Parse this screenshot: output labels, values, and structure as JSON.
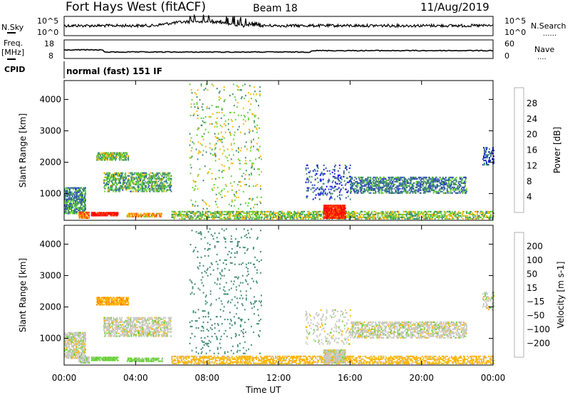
{
  "header": {
    "title": "Fort Hays West (fitACF)",
    "beam": "Beam 18",
    "date": "11/Aug/2019"
  },
  "noise_panel": {
    "left_label": "N.Sky",
    "right_label": "N.Search",
    "ticks_left": [
      "10^5",
      "10^0"
    ],
    "ticks_right": [
      "10^5",
      "10^0"
    ],
    "right_marker": "......"
  },
  "freq_panel": {
    "left_label_1": "Freq.",
    "left_label_2": "[MHz]",
    "right_label": "Nave",
    "ticks_left": [
      "18",
      "8"
    ],
    "ticks_right": [
      "60",
      "0"
    ],
    "right_marker": "...."
  },
  "cpid": {
    "label": "CPID",
    "value": "normal (fast) 151 IF"
  },
  "chart_data": [
    {
      "type": "heatmap",
      "title": "Power",
      "xlabel": "Time UT",
      "ylabel": "Slant Range [km]",
      "xlim": [
        0,
        24
      ],
      "ylim": [
        150,
        4600
      ],
      "xticks": [
        "00:00",
        "04:00",
        "08:00",
        "12:00",
        "16:00",
        "20:00",
        "00:00"
      ],
      "yticks": [
        1000,
        2000,
        3000,
        4000
      ],
      "colorbar": {
        "label": "Power [dB]",
        "ticks": [
          "28",
          "24",
          "20",
          "16",
          "12",
          "8",
          "4"
        ],
        "colors": [
          "#ff0000",
          "#ff3a00",
          "#ff7800",
          "#ffb400",
          "#64d232",
          "#3c8a6e",
          "#2846b4",
          "#0000ff"
        ]
      },
      "echo_regions": [
        {
          "t": [
            0,
            1.2
          ],
          "r": [
            350,
            1200
          ],
          "value": 10,
          "density": 0.6
        },
        {
          "t": [
            0.8,
            1.4
          ],
          "r": [
            200,
            420
          ],
          "value": 22,
          "density": 0.7
        },
        {
          "t": [
            1.5,
            3.0
          ],
          "r": [
            280,
            400
          ],
          "value": 29,
          "density": 0.8
        },
        {
          "t": [
            1.8,
            3.6
          ],
          "r": [
            2050,
            2300
          ],
          "value": 13,
          "density": 0.7
        },
        {
          "t": [
            2.2,
            6.0
          ],
          "r": [
            1050,
            1650
          ],
          "value": 12,
          "density": 0.45
        },
        {
          "t": [
            3.5,
            5.5
          ],
          "r": [
            250,
            350
          ],
          "value": 20,
          "density": 0.6
        },
        {
          "t": [
            7.0,
            11.0
          ],
          "r": [
            500,
            4500
          ],
          "value": 14,
          "density": 0.04
        },
        {
          "t": [
            6.0,
            24.0
          ],
          "r": [
            180,
            420
          ],
          "value": 14,
          "density": 0.45
        },
        {
          "t": [
            13.5,
            16.0
          ],
          "r": [
            800,
            1900
          ],
          "value": 6,
          "density": 0.12
        },
        {
          "t": [
            14.5,
            15.7
          ],
          "r": [
            200,
            650
          ],
          "value": 28,
          "density": 0.85
        },
        {
          "t": [
            16.0,
            22.5
          ],
          "r": [
            1000,
            1500
          ],
          "value": 9,
          "density": 0.45
        },
        {
          "t": [
            23.4,
            24.0
          ],
          "r": [
            1900,
            2450
          ],
          "value": 6,
          "density": 0.3
        }
      ]
    },
    {
      "type": "heatmap",
      "title": "Velocity",
      "xlabel": "Time UT",
      "ylabel": "Slant Range [km]",
      "xlim": [
        0,
        24
      ],
      "ylim": [
        150,
        4600
      ],
      "xticks": [
        "00:00",
        "04:00",
        "08:00",
        "12:00",
        "16:00",
        "20:00",
        "00:00"
      ],
      "yticks": [
        1000,
        2000,
        3000,
        4000
      ],
      "colorbar": {
        "label": "Velocity [m s-1]",
        "ticks": [
          "200",
          "100",
          "50",
          "15",
          "−15",
          "−50",
          "−100",
          "−200"
        ],
        "colors": [
          "#0000ff",
          "#2846b4",
          "#3c8a6e",
          "#64d232",
          "#c8c8c0",
          "#ffb400",
          "#ff7800",
          "#ff3a00",
          "#ff0000"
        ]
      },
      "echo_regions": [
        {
          "t": [
            0,
            1.2
          ],
          "r": [
            350,
            1200
          ],
          "value": 0,
          "density": 0.6
        },
        {
          "t": [
            0.8,
            1.4
          ],
          "r": [
            200,
            420
          ],
          "value": 5,
          "density": 0.7
        },
        {
          "t": [
            1.5,
            3.0
          ],
          "r": [
            280,
            400
          ],
          "value": 30,
          "density": 0.8
        },
        {
          "t": [
            1.8,
            3.6
          ],
          "r": [
            2050,
            2300
          ],
          "value": -40,
          "density": 0.7
        },
        {
          "t": [
            2.2,
            6.0
          ],
          "r": [
            1050,
            1650
          ],
          "value": 0,
          "density": 0.45
        },
        {
          "t": [
            3.5,
            5.5
          ],
          "r": [
            250,
            350
          ],
          "value": 30,
          "density": 0.6
        },
        {
          "t": [
            7.0,
            11.0
          ],
          "r": [
            500,
            4500
          ],
          "value": 80,
          "density": 0.04
        },
        {
          "t": [
            6.0,
            24.0
          ],
          "r": [
            180,
            420
          ],
          "value": -30,
          "density": 0.45
        },
        {
          "t": [
            13.5,
            16.0
          ],
          "r": [
            800,
            1900
          ],
          "value": 0,
          "density": 0.12
        },
        {
          "t": [
            14.5,
            15.7
          ],
          "r": [
            200,
            650
          ],
          "value": 0,
          "density": 0.85
        },
        {
          "t": [
            16.0,
            22.5
          ],
          "r": [
            1000,
            1500
          ],
          "value": 0,
          "density": 0.45
        },
        {
          "t": [
            23.4,
            24.0
          ],
          "r": [
            1900,
            2450
          ],
          "value": 0,
          "density": 0.3
        }
      ]
    }
  ]
}
